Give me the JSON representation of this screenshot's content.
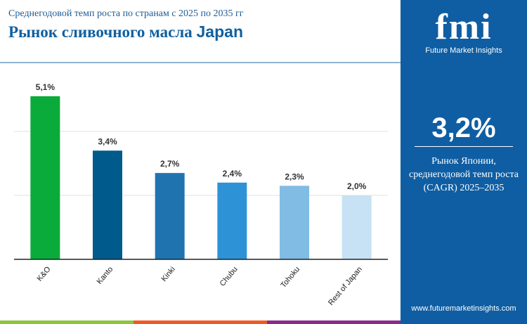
{
  "header": {
    "subtitle": "Среднегодовой темп роста по странам с 2025 по 2035 гг",
    "title": "Рынок сливочного масла",
    "title_bold": "Japan"
  },
  "panel": {
    "logo_text": "fmi",
    "logo_caption": "Future Market Insights",
    "cagr_value": "3,2%",
    "cagr_desc_1": "Рынок Японии,",
    "cagr_desc_2": "среднегодовой темп роста",
    "cagr_desc_3": "(CAGR) 2025–2035",
    "url": "www.futuremarketinsights.com",
    "bg_color": "#0f5ea3"
  },
  "chart_data": {
    "type": "bar",
    "categories": [
      "K&O",
      "Kanto",
      "Kinki",
      "Chubu",
      "Tohoku",
      "Rest of Japan"
    ],
    "values": [
      5.1,
      3.4,
      2.7,
      2.4,
      2.3,
      2.0
    ],
    "labels": [
      "5,1%",
      "3,4%",
      "2,7%",
      "2,4%",
      "2,3%",
      "2,0%"
    ],
    "colors": [
      "#0aab3a",
      "#005a8c",
      "#1f74b0",
      "#2e93d6",
      "#80bce3",
      "#c6e2f4"
    ],
    "ylim": [
      0,
      6
    ],
    "grid": true,
    "gridlines": [
      2,
      4
    ]
  }
}
